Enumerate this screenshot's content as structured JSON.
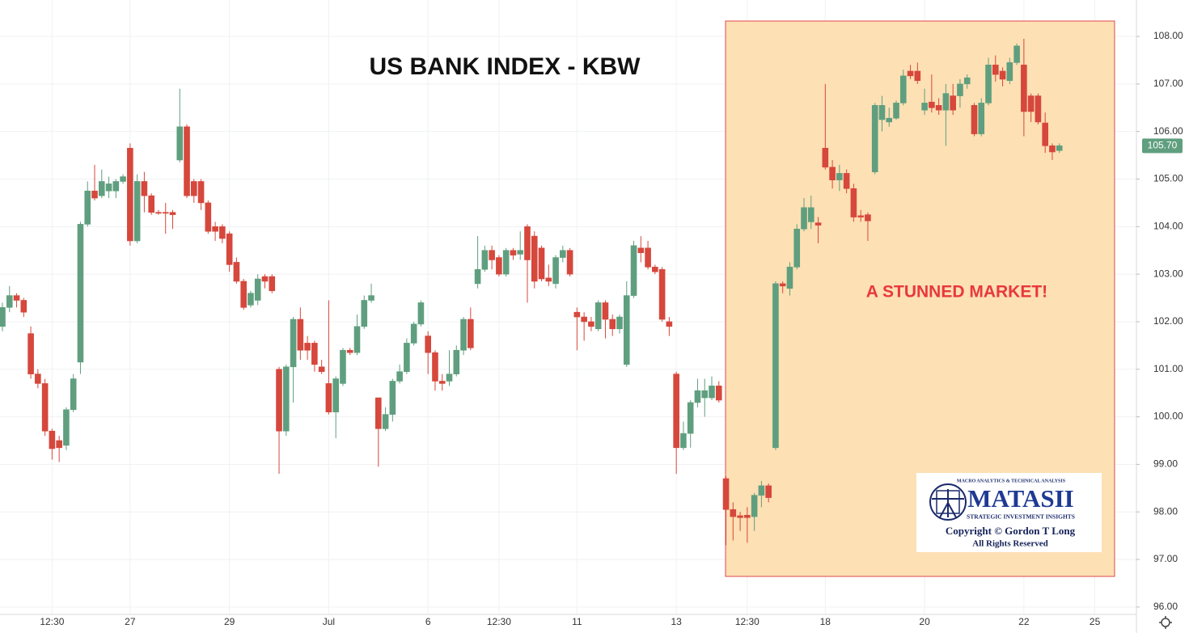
{
  "chart_data": {
    "type": "candlestick",
    "title": "US BANK INDEX - KBW",
    "annotation": "A STUNNED MARKET!",
    "up_color": "#5f9f7f",
    "down_color": "#d6473c",
    "grid": true,
    "categories": [
      null,
      null,
      null,
      null,
      null,
      null,
      null,
      "12:30",
      null,
      null,
      null,
      null,
      null,
      null,
      null,
      null,
      null,
      null,
      "27",
      null,
      null,
      null,
      null,
      null,
      null,
      null,
      null,
      null,
      null,
      null,
      null,
      null,
      "29",
      null,
      null,
      null,
      null,
      null,
      null,
      null,
      null,
      null,
      null,
      null,
      null,
      null,
      "Jul",
      null,
      null,
      null,
      null,
      null,
      null,
      null,
      null,
      null,
      null,
      null,
      null,
      null,
      "6",
      null,
      null,
      null,
      null,
      null,
      null,
      null,
      null,
      null,
      "12:30",
      null,
      null,
      null,
      null,
      null,
      null,
      null,
      null,
      null,
      null,
      "11",
      null,
      null,
      null,
      null,
      null,
      null,
      null,
      null,
      null,
      null,
      null,
      null,
      null,
      "13",
      null,
      null,
      null,
      null,
      null,
      null,
      null,
      null,
      null,
      "12:30",
      null,
      null,
      null,
      null,
      null,
      null,
      null,
      null,
      null,
      null,
      "18",
      null,
      null,
      null,
      null,
      null,
      null,
      null,
      null,
      null,
      null,
      null,
      null,
      null,
      "20",
      null,
      null,
      null,
      null,
      null,
      null,
      null,
      null,
      null,
      null,
      null,
      null,
      null,
      "22",
      null,
      null,
      null,
      null,
      null,
      null,
      null,
      null,
      null,
      "25",
      null,
      null,
      null
    ],
    "open": [
      101.9,
      102.3,
      102.55,
      102.45,
      101.75,
      100.9,
      100.7,
      99.7,
      99.5,
      99.4,
      100.15,
      101.15,
      104.05,
      104.75,
      104.65,
      104.75,
      104.75,
      104.95,
      105.65,
      103.7,
      104.95,
      104.65,
      104.3,
      104.3,
      104.3,
      105.4,
      106.1,
      104.95,
      104.95,
      104.5,
      104.0,
      104.0,
      103.85,
      103.25,
      102.85,
      102.35,
      102.45,
      102.95,
      102.95,
      101.0,
      99.7,
      101.05,
      102.05,
      101.55,
      101.55,
      101.05,
      100.7,
      100.1,
      100.7,
      101.4,
      101.35,
      101.9,
      102.45,
      100.4,
      99.75,
      100.05,
      100.75,
      100.95,
      101.55,
      101.95,
      101.7,
      101.35,
      100.75,
      100.75,
      100.9,
      101.4,
      102.05,
      102.8,
      103.1,
      103.5,
      103.35,
      103.0,
      103.5,
      103.42,
      104.0,
      103.8,
      103.55,
      102.92,
      102.8,
      103.35,
      103.5,
      102.2,
      102.1,
      102.0,
      101.85,
      102.4,
      102.05,
      101.85,
      101.1,
      102.55,
      103.55,
      103.55,
      103.15,
      103.1,
      102.0,
      100.9,
      99.35,
      99.65,
      100.3,
      100.4,
      100.4,
      100.65,
      98.7,
      98.05,
      97.92,
      97.93,
      97.9,
      98.35,
      98.55,
      99.35,
      102.8,
      102.7,
      103.15,
      103.95,
      104.1,
      104.08,
      105.65,
      105.25,
      104.98,
      105.12,
      104.8,
      104.23,
      104.25,
      105.15,
      106.25,
      106.2,
      106.28,
      106.6,
      107.27,
      107.27,
      106.45,
      106.62,
      106.55,
      106.45,
      106.75,
      106.75,
      107.0,
      106.55,
      105.95,
      106.6,
      107.4,
      107.27,
      107.07,
      107.45,
      107.4,
      106.75,
      106.75,
      106.18,
      105.7,
      105.6,
      null,
      null,
      null,
      null,
      null,
      null,
      null,
      null
    ],
    "high": [
      102.4,
      102.75,
      102.6,
      102.5,
      101.9,
      101.0,
      100.8,
      99.75,
      99.6,
      100.2,
      100.9,
      104.1,
      104.95,
      105.3,
      105.2,
      105.05,
      105.0,
      105.1,
      105.75,
      105.1,
      105.15,
      104.7,
      104.35,
      104.5,
      104.35,
      106.9,
      106.15,
      105.0,
      105.0,
      104.55,
      104.1,
      104.05,
      103.9,
      103.35,
      102.9,
      102.65,
      103.0,
      103.0,
      103.0,
      101.05,
      101.1,
      102.1,
      102.3,
      101.7,
      101.6,
      101.2,
      102.45,
      100.85,
      101.45,
      101.45,
      102.15,
      102.55,
      102.8,
      100.4,
      100.2,
      100.8,
      101.1,
      101.65,
      102.0,
      102.45,
      101.8,
      101.4,
      100.9,
      101.4,
      101.5,
      102.1,
      102.3,
      103.8,
      103.6,
      103.6,
      103.4,
      103.55,
      103.55,
      103.9,
      104.05,
      103.9,
      103.6,
      103.2,
      103.4,
      103.6,
      103.55,
      102.3,
      102.2,
      102.1,
      102.45,
      102.45,
      102.15,
      102.15,
      102.85,
      103.7,
      103.8,
      103.7,
      103.2,
      103.15,
      102.1,
      100.95,
      99.9,
      100.35,
      100.8,
      100.8,
      100.85,
      100.75,
      98.75,
      98.2,
      98.0,
      98.1,
      98.4,
      98.65,
      98.6,
      102.85,
      102.85,
      103.25,
      104.05,
      104.6,
      104.65,
      104.2,
      107.0,
      105.4,
      105.3,
      105.2,
      104.9,
      104.35,
      104.3,
      106.6,
      106.75,
      106.5,
      106.65,
      107.3,
      107.4,
      107.45,
      106.9,
      107.2,
      106.7,
      107.0,
      107.0,
      107.1,
      107.2,
      106.6,
      106.7,
      107.55,
      107.6,
      107.35,
      107.55,
      107.85,
      107.95,
      106.8,
      106.8,
      106.4,
      105.75,
      105.75,
      null,
      null,
      null,
      null,
      null,
      null,
      null,
      null
    ],
    "low": [
      101.8,
      102.2,
      102.3,
      102.1,
      100.8,
      100.6,
      99.6,
      99.1,
      99.05,
      99.3,
      100.1,
      100.9,
      104.0,
      104.55,
      104.6,
      104.6,
      104.6,
      104.9,
      103.6,
      103.65,
      104.3,
      104.25,
      104.25,
      103.85,
      103.95,
      105.35,
      104.6,
      104.5,
      104.35,
      103.85,
      103.7,
      103.65,
      103.05,
      102.8,
      102.25,
      102.3,
      102.35,
      102.7,
      102.6,
      98.8,
      99.6,
      100.3,
      101.2,
      101.2,
      100.95,
      100.9,
      100.05,
      99.55,
      100.65,
      101.3,
      101.3,
      101.85,
      102.4,
      98.95,
      99.7,
      99.9,
      100.7,
      100.9,
      101.5,
      101.9,
      100.9,
      100.55,
      100.55,
      100.65,
      100.85,
      101.3,
      101.4,
      102.7,
      103.05,
      103.1,
      102.95,
      102.95,
      103.3,
      103.3,
      102.4,
      102.7,
      102.85,
      102.75,
      102.7,
      103.25,
      102.95,
      101.4,
      101.6,
      101.8,
      101.8,
      101.65,
      101.7,
      101.75,
      101.05,
      102.5,
      103.25,
      103.1,
      103.0,
      102.0,
      101.7,
      98.8,
      99.3,
      99.35,
      100.2,
      100.0,
      100.35,
      100.3,
      97.3,
      97.4,
      97.6,
      97.35,
      97.6,
      98.1,
      98.2,
      99.3,
      102.6,
      102.55,
      103.1,
      103.9,
      103.95,
      103.65,
      105.2,
      104.8,
      104.75,
      104.7,
      104.1,
      104.1,
      103.7,
      105.1,
      106.0,
      106.1,
      106.25,
      106.55,
      107.1,
      107.0,
      106.35,
      106.4,
      106.35,
      105.7,
      106.35,
      106.5,
      106.9,
      105.9,
      105.9,
      106.55,
      107.05,
      106.95,
      107.0,
      107.4,
      105.9,
      106.2,
      106.15,
      105.55,
      105.4,
      105.55,
      null,
      null,
      null,
      null,
      null,
      null,
      null,
      null
    ],
    "close": [
      102.3,
      102.55,
      102.45,
      102.2,
      100.9,
      100.7,
      99.7,
      99.33,
      99.35,
      100.15,
      100.8,
      104.05,
      104.75,
      104.6,
      104.95,
      104.9,
      104.95,
      105.05,
      103.7,
      104.95,
      104.65,
      104.3,
      104.28,
      104.28,
      104.25,
      106.1,
      104.65,
      104.65,
      104.5,
      103.9,
      103.9,
      103.75,
      103.2,
      102.85,
      102.3,
      102.6,
      102.9,
      102.85,
      102.65,
      99.7,
      101.05,
      102.05,
      101.4,
      101.4,
      101.1,
      100.95,
      100.1,
      100.8,
      101.4,
      101.35,
      101.9,
      102.45,
      102.55,
      99.75,
      100.05,
      100.75,
      100.95,
      101.55,
      101.95,
      102.4,
      101.35,
      100.75,
      100.7,
      100.9,
      101.4,
      102.05,
      101.45,
      103.1,
      103.5,
      103.3,
      103.0,
      103.5,
      103.4,
      103.5,
      103.3,
      102.85,
      102.9,
      102.85,
      103.35,
      103.5,
      103.0,
      102.1,
      102.0,
      101.9,
      102.4,
      102.05,
      101.85,
      102.1,
      102.55,
      103.6,
      103.45,
      103.15,
      103.05,
      102.05,
      101.9,
      99.35,
      99.65,
      100.3,
      100.55,
      100.55,
      100.65,
      100.35,
      98.05,
      97.9,
      97.88,
      97.88,
      98.35,
      98.55,
      98.3,
      102.8,
      102.75,
      103.15,
      103.95,
      104.4,
      104.4,
      104.03,
      105.25,
      104.98,
      105.12,
      104.8,
      104.2,
      104.2,
      104.12,
      106.55,
      106.55,
      106.28,
      106.6,
      107.17,
      107.17,
      107.07,
      106.6,
      106.5,
      106.45,
      106.8,
      106.45,
      107.0,
      107.13,
      105.95,
      106.6,
      107.4,
      107.2,
      107.1,
      107.45,
      107.8,
      106.42,
      106.42,
      106.2,
      105.7,
      105.57,
      105.7,
      null,
      null,
      null,
      null,
      null,
      null,
      null,
      null
    ],
    "last_price": {
      "value": 105.7,
      "label": "105.70"
    },
    "ylim": [
      95.8,
      108.8
    ],
    "yticks": [
      {
        "value": 96,
        "label": "96.00"
      },
      {
        "value": 97,
        "label": "97.00"
      },
      {
        "value": 98,
        "label": "98.00"
      },
      {
        "value": 99,
        "label": "99.00"
      },
      {
        "value": 100,
        "label": "100.00"
      },
      {
        "value": 101,
        "label": "101.00"
      },
      {
        "value": 102,
        "label": "102.00"
      },
      {
        "value": 103,
        "label": "103.00"
      },
      {
        "value": 104,
        "label": "104.00"
      },
      {
        "value": 105,
        "label": "105.00"
      },
      {
        "value": 106,
        "label": "106.00"
      },
      {
        "value": 107,
        "label": "107.00"
      },
      {
        "value": 108,
        "label": "108.00"
      }
    ]
  },
  "logo": {
    "tagline": "MACRO ANALYTICS & TECHNICAL ANALYSIS",
    "brand": "MATASII",
    "subtitle": "STRATEGIC INVESTMENT INSIGHTS",
    "copyright": "Copyright © Gordon T Long",
    "rights": "All Rights Reserved"
  }
}
